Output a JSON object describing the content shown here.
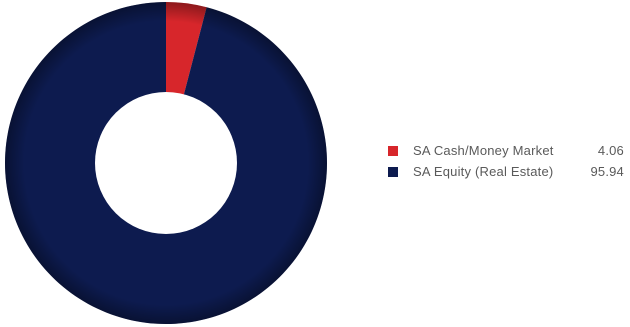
{
  "chart_data": {
    "type": "pie",
    "variant": "donut",
    "title": "",
    "categories": [
      "SA Cash/Money Market",
      "SA Equity (Real Estate)"
    ],
    "values": [
      4.06,
      95.94
    ],
    "value_labels": [
      "4.06",
      "95.94"
    ],
    "colors": [
      "#d7262b",
      "#0d1b4f"
    ],
    "legend_placement": "right",
    "start_angle_deg": 0,
    "direction": "clockwise"
  }
}
